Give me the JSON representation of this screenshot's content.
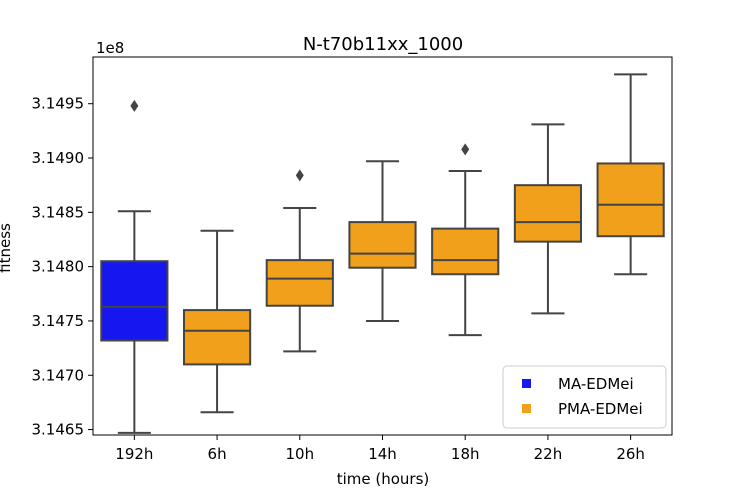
{
  "chart_data": {
    "type": "box",
    "title": "N-t70b11xx_1000",
    "xlabel": "time (hours)",
    "ylabel": "fitness",
    "y_multiplier": "1e8",
    "ylim": [
      3.14645,
      3.14993
    ],
    "yticks": [
      "3.1465",
      "3.1470",
      "3.1475",
      "3.1480",
      "3.1485",
      "3.1490",
      "3.1495"
    ],
    "grid": false,
    "legend_position": "lower-right",
    "series": [
      {
        "name": "MA-EDMei",
        "color": "#1616f0"
      },
      {
        "name": "PMA-EDMei",
        "color": "#f0a01a"
      }
    ],
    "categories": [
      "192h",
      "6h",
      "10h",
      "14h",
      "18h",
      "22h",
      "26h"
    ],
    "boxes": [
      {
        "category": "192h",
        "series": "MA-EDMei",
        "whisker_low": 3.14647,
        "q1": 3.14732,
        "median": 3.14763,
        "q3": 3.14805,
        "whisker_high": 3.14851,
        "outliers": [
          3.14948
        ]
      },
      {
        "category": "6h",
        "series": "PMA-EDMei",
        "whisker_low": 3.14666,
        "q1": 3.1471,
        "median": 3.14741,
        "q3": 3.1476,
        "whisker_high": 3.14833,
        "outliers": []
      },
      {
        "category": "10h",
        "series": "PMA-EDMei",
        "whisker_low": 3.14722,
        "q1": 3.14764,
        "median": 3.14789,
        "q3": 3.14806,
        "whisker_high": 3.14854,
        "outliers": [
          3.14884
        ]
      },
      {
        "category": "14h",
        "series": "PMA-EDMei",
        "whisker_low": 3.1475,
        "q1": 3.14799,
        "median": 3.14812,
        "q3": 3.14841,
        "whisker_high": 3.14897,
        "outliers": []
      },
      {
        "category": "18h",
        "series": "PMA-EDMei",
        "whisker_low": 3.14737,
        "q1": 3.14793,
        "median": 3.14806,
        "q3": 3.14835,
        "whisker_high": 3.14888,
        "outliers": [
          3.14908
        ]
      },
      {
        "category": "22h",
        "series": "PMA-EDMei",
        "whisker_low": 3.14757,
        "q1": 3.14823,
        "median": 3.14841,
        "q3": 3.14875,
        "whisker_high": 3.14931,
        "outliers": []
      },
      {
        "category": "26h",
        "series": "PMA-EDMei",
        "whisker_low": 3.14793,
        "q1": 3.14828,
        "median": 3.14857,
        "q3": 3.14895,
        "whisker_high": 3.14977,
        "outliers": []
      }
    ]
  }
}
